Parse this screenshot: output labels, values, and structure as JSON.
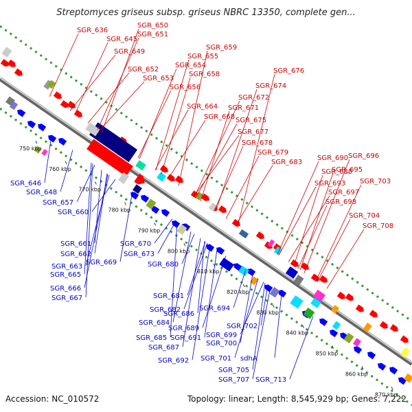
{
  "header": {
    "title": "Streptomyces griseus subsp. griseus NBRC 13350, complete gen..."
  },
  "footer": {
    "accession": "Accession: NC_010572",
    "summary": "Topology: linear; Length: 8,545,929 bp; Genes: 7,222"
  },
  "colors": {
    "forward": "#ff0000",
    "reverse": "#0000ff",
    "label_forward": "#cc0000",
    "label_reverse": "#0000cc",
    "dots": "#339933",
    "backbone": "#888888"
  },
  "ticks": [
    "750 kbp",
    "760 kbp",
    "770 kbp",
    "780 kbp",
    "790 kbp",
    "800 kbp",
    "810 kbp",
    "820 kbp",
    "830 kbp",
    "840 kbp",
    "850 kbp",
    "860 kbp",
    "870 kbp"
  ],
  "top_labels": [
    "SGR_636",
    "SGR_645",
    "SGR_650",
    "SGR_651",
    "SGR_649",
    "SGR_659",
    "SGR_655",
    "SGR_654",
    "SGR_652",
    "SGR_653",
    "SGR_658",
    "SGR_656",
    "SGR_676",
    "SGR_674",
    "SGR_672",
    "SGR_671",
    "SGR_664",
    "SGR_668",
    "SGR_675",
    "SGR_677",
    "SGR_678",
    "SGR_679",
    "SGR_683",
    "SGR_690",
    "SGR_696",
    "SGR_688",
    "SGR_695",
    "SGR_693",
    "SGR_697",
    "SGR_703",
    "SGR_698",
    "SGR_704",
    "SGR_708"
  ],
  "bottom_labels": [
    "SGR_646",
    "SGR_648",
    "SGR_657",
    "SGR_660",
    "SGR_661",
    "SGR_662",
    "SGR_670",
    "SGR_663",
    "SGR_665",
    "SGR_669",
    "SGR_673",
    "SGR_666",
    "SGR_667",
    "SGR_680",
    "SGR_681",
    "SGR_682",
    "SGR_686",
    "SGR_694",
    "SGR_684",
    "SGR_689",
    "SGR_685",
    "SGR_691",
    "SGR_687",
    "SGR_699",
    "SGR_702",
    "SGR_700",
    "SGR_692",
    "SGR_701",
    "sdhA",
    "SGR_705",
    "SGR_707",
    "SGR_713"
  ]
}
